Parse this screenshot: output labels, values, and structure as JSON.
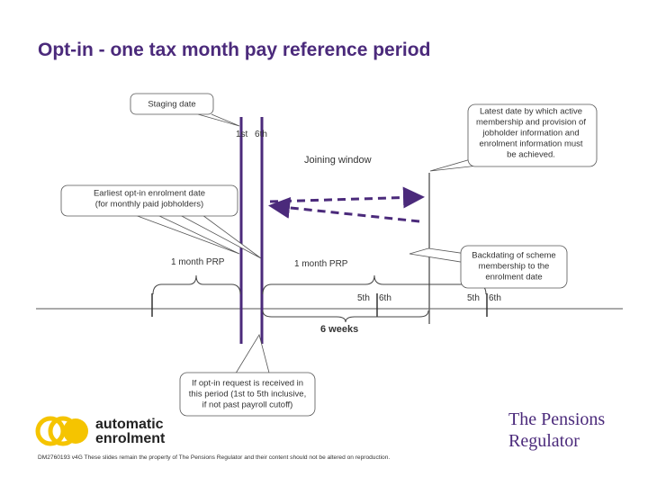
{
  "title": "Opt-in - one tax month pay reference period",
  "callouts": {
    "staging": [
      "Staging date"
    ],
    "latest": [
      "Latest date by which active",
      "membership and provision of",
      "jobholder information and",
      "enrolment information must",
      "be achieved."
    ],
    "earliest": [
      "Earliest opt-in enrolment date",
      "(for monthly paid jobholders)"
    ],
    "backdating": [
      "Backdating of scheme",
      "membership to the",
      "enrolment date"
    ],
    "optin": [
      "If opt-in request is received in",
      "this period (1st to 5th inclusive,",
      "if not past payroll cutoff)"
    ]
  },
  "labels": {
    "first": "1st",
    "sixth": "6th",
    "joining_window": "Joining window",
    "prp_left": "1 month PRP",
    "prp_right": "1 month PRP",
    "mid_fifth": "5th",
    "mid_sixth": "6th",
    "right_fifth": "5th",
    "right_sixth": "6th",
    "six_weeks": "6 weeks"
  },
  "logo": {
    "left": [
      "automatic",
      "enrolment"
    ],
    "right": [
      "The Pensions",
      "Regulator"
    ]
  },
  "footer": "DM2760193 v4G These slides remain the property of The Pensions Regulator and their content should not be altered on reproduction."
}
